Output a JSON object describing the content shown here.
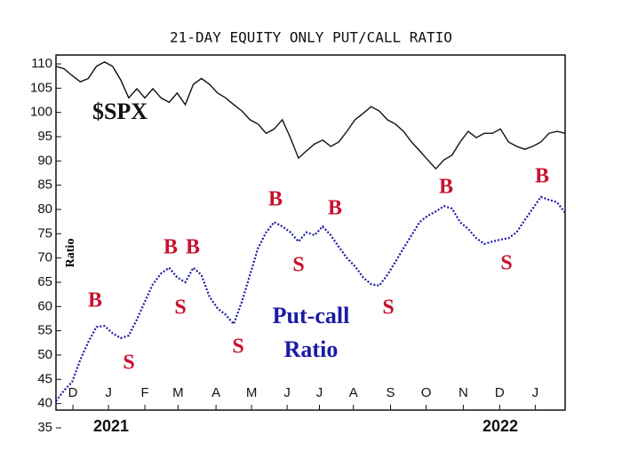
{
  "chart_data": {
    "type": "line",
    "title": "21-DAY EQUITY ONLY PUT/CALL RATIO",
    "ylabel": "Ratio",
    "x": [
      0,
      1,
      2,
      3,
      4,
      5,
      6,
      7,
      8,
      9,
      10,
      11,
      12,
      13,
      14,
      15,
      16,
      17,
      18,
      19,
      20,
      21,
      22,
      23,
      24,
      25,
      26,
      27,
      28,
      29,
      30,
      31,
      32,
      33,
      34,
      35,
      36,
      37,
      38,
      39,
      40,
      41,
      42,
      43,
      44,
      45,
      46,
      47,
      48,
      49,
      50,
      51,
      52,
      53,
      54,
      55,
      56,
      57,
      58,
      59,
      60,
      61,
      62,
      63
    ],
    "xlim": [
      0,
      63
    ],
    "xticks": [
      {
        "value": 2.1,
        "label": "D"
      },
      {
        "value": 6.5,
        "label": "J"
      },
      {
        "value": 11,
        "label": "F"
      },
      {
        "value": 15.1,
        "label": "M"
      },
      {
        "value": 19.8,
        "label": "A"
      },
      {
        "value": 24.2,
        "label": "M"
      },
      {
        "value": 28.6,
        "label": "J"
      },
      {
        "value": 32.6,
        "label": "J"
      },
      {
        "value": 36.8,
        "label": "A"
      },
      {
        "value": 41.4,
        "label": "S"
      },
      {
        "value": 45.8,
        "label": "O"
      },
      {
        "value": 50.4,
        "label": "N"
      },
      {
        "value": 54.9,
        "label": "D"
      },
      {
        "value": 59.3,
        "label": "J"
      }
    ],
    "year_labels": [
      "2021",
      "2022"
    ],
    "ylim": [
      35,
      110
    ],
    "yticks": [
      35,
      40,
      45,
      50,
      55,
      60,
      65,
      70,
      75,
      80,
      85,
      90,
      95,
      100,
      105,
      110
    ],
    "series": [
      {
        "name": "$SPX",
        "color": "#111111",
        "values": [
          109.5,
          109,
          107.6,
          106.3,
          107,
          109.5,
          110.4,
          109.5,
          106.7,
          103,
          104.9,
          103,
          104.9,
          103,
          102.1,
          104,
          101.6,
          105.8,
          107,
          105.8,
          104,
          103,
          101.6,
          100.3,
          98.5,
          97.6,
          95.7,
          96.6,
          98.5,
          94.8,
          90.6,
          92.1,
          93.5,
          94.3,
          93,
          93.9,
          96.1,
          98.5,
          99.8,
          101.2,
          100.3,
          98.5,
          97.6,
          96.1,
          93.9,
          92.1,
          90.2,
          88.4,
          90.2,
          91.2,
          93.9,
          96.1,
          94.8,
          95.7,
          95.7,
          96.6,
          93.9,
          93,
          92.4,
          93,
          93.9,
          95.7,
          96.1,
          95.7
        ]
      },
      {
        "color": "#1a1aa6",
        "values": [
          40.5,
          42.7,
          44.5,
          49,
          52.7,
          55.8,
          56,
          54.5,
          53.5,
          54,
          57.3,
          61,
          64.6,
          66.8,
          68,
          66,
          65,
          68,
          66.5,
          62,
          59.6,
          58.3,
          56.4,
          61,
          66.5,
          72,
          75.3,
          77.4,
          76.5,
          75.3,
          73.4,
          75.3,
          74.7,
          76.5,
          74.7,
          72.3,
          70,
          68.3,
          66,
          64.6,
          64.3,
          66.5,
          69.2,
          72,
          74.7,
          77.4,
          78.7,
          79.6,
          80.7,
          80.2,
          77.4,
          76,
          74.1,
          72.9,
          73.4,
          73.8,
          74.1,
          75.3,
          77.8,
          80.2,
          82.6,
          82,
          81.5,
          79.3
        ]
      }
    ],
    "annotations": [
      "B",
      "S",
      "B",
      "B",
      "S",
      "S",
      "B",
      "S",
      "B",
      "S",
      "B",
      "S",
      "B",
      "Put-call",
      "Ratio"
    ]
  }
}
